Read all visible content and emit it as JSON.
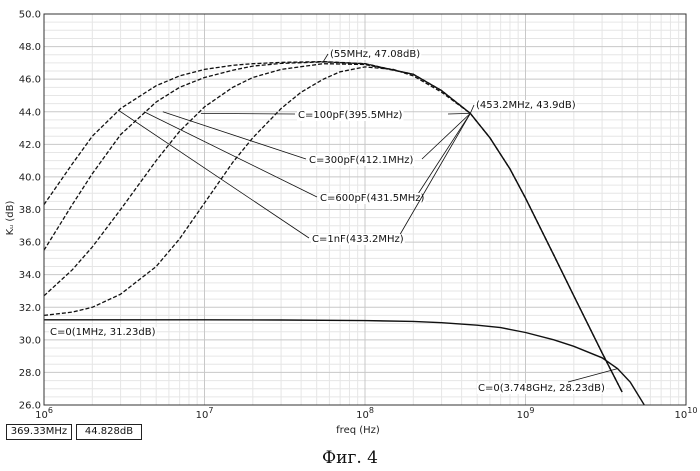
{
  "figure_caption": "Фиг. 4",
  "readouts": {
    "frequency": "369.33MHz",
    "gain": "44.828dB"
  },
  "colors": {
    "curve": "#111111",
    "grid_major": "#c8c8c8",
    "grid_minor": "#e6e6e6",
    "frame": "#333333"
  },
  "chart_data": {
    "type": "line",
    "xlabel": "freq (Hz)",
    "ylabel": "Kᵤ (dB)",
    "x_scale": "log",
    "xlim": [
      1000000,
      10000000000
    ],
    "ylim": [
      26,
      50
    ],
    "x_ticks": [
      {
        "value": 1000000,
        "base": "10",
        "exp": "6"
      },
      {
        "value": 10000000,
        "base": "10",
        "exp": "7"
      },
      {
        "value": 100000000,
        "base": "10",
        "exp": "8"
      },
      {
        "value": 1000000000,
        "base": "10",
        "exp": "9"
      },
      {
        "value": 10000000000,
        "base": "10",
        "exp": "10"
      }
    ],
    "y_ticks": [
      {
        "value": 26,
        "label": "26.0"
      },
      {
        "value": 28,
        "label": "28.0"
      },
      {
        "value": 30,
        "label": "30.0"
      },
      {
        "value": 32,
        "label": "32.0"
      },
      {
        "value": 34,
        "label": "34.0"
      },
      {
        "value": 36,
        "label": "36.0"
      },
      {
        "value": 38,
        "label": "38.0"
      },
      {
        "value": 40,
        "label": "40.0"
      },
      {
        "value": 42,
        "label": "42.0"
      },
      {
        "value": 44,
        "label": "44.0"
      },
      {
        "value": 46,
        "label": "46.0"
      },
      {
        "value": 48,
        "label": "48.0"
      },
      {
        "value": 50,
        "label": "50.0"
      }
    ],
    "grid": true,
    "series": [
      {
        "dashed": false,
        "x": [
          1000000,
          3000000,
          10000000,
          30000000,
          100000000,
          200000000,
          300000000,
          500000000,
          700000000,
          1000000000,
          1500000000,
          2000000000,
          3000000000,
          3748000000,
          4500000000,
          5500000000
        ],
        "y": [
          31.23,
          31.23,
          31.23,
          31.22,
          31.18,
          31.13,
          31.05,
          30.9,
          30.75,
          30.45,
          30.0,
          29.6,
          28.9,
          28.23,
          27.4,
          26.0
        ]
      },
      {
        "dashed": true,
        "x": [
          1000000,
          1500000,
          2000000,
          3000000,
          5000000,
          7000000,
          10000000,
          15000000,
          20000000,
          30000000,
          55000000,
          100000000,
          200000000,
          300000000,
          453200000,
          600000000,
          800000000,
          1000000000,
          1500000000,
          2000000000,
          3000000000,
          4000000000
        ],
        "y": [
          38.3,
          40.8,
          42.5,
          44.2,
          45.6,
          46.2,
          46.6,
          46.85,
          46.95,
          47.03,
          47.08,
          46.95,
          46.3,
          45.3,
          43.9,
          42.4,
          40.5,
          38.7,
          35.2,
          32.7,
          29.2,
          26.8
        ]
      },
      {
        "dashed": true,
        "x": [
          1000000,
          1500000,
          2000000,
          3000000,
          5000000,
          7000000,
          10000000,
          15000000,
          20000000,
          30000000,
          55000000,
          100000000,
          200000000,
          300000000,
          453200000,
          600000000,
          800000000,
          1000000000,
          1500000000,
          2000000000,
          3000000000,
          4000000000
        ],
        "y": [
          35.5,
          38.3,
          40.2,
          42.6,
          44.6,
          45.5,
          46.1,
          46.55,
          46.8,
          46.97,
          47.06,
          46.95,
          46.3,
          45.3,
          43.9,
          42.4,
          40.5,
          38.7,
          35.2,
          32.7,
          29.2,
          26.8
        ]
      },
      {
        "dashed": true,
        "x": [
          1000000,
          1500000,
          2000000,
          3000000,
          5000000,
          7000000,
          10000000,
          15000000,
          20000000,
          30000000,
          55000000,
          100000000,
          200000000,
          300000000,
          453200000,
          600000000,
          800000000,
          1000000000,
          1500000000,
          2000000000,
          3000000000,
          4000000000
        ],
        "y": [
          32.7,
          34.3,
          35.7,
          38.0,
          41.0,
          42.8,
          44.3,
          45.5,
          46.1,
          46.6,
          46.95,
          46.9,
          46.3,
          45.3,
          43.9,
          42.4,
          40.5,
          38.7,
          35.2,
          32.7,
          29.2,
          26.8
        ]
      },
      {
        "dashed": true,
        "x": [
          1000000,
          1500000,
          2000000,
          3000000,
          5000000,
          7000000,
          10000000,
          15000000,
          20000000,
          30000000,
          40000000,
          55000000,
          70000000,
          100000000,
          150000000,
          200000000,
          300000000,
          453200000,
          600000000,
          800000000,
          1000000000,
          1500000000,
          2000000000,
          3000000000,
          4000000000
        ],
        "y": [
          31.5,
          31.7,
          32.0,
          32.8,
          34.5,
          36.2,
          38.4,
          40.9,
          42.4,
          44.2,
          45.2,
          46.0,
          46.45,
          46.75,
          46.6,
          46.2,
          45.2,
          43.9,
          42.4,
          40.5,
          38.7,
          35.2,
          32.7,
          29.2,
          26.8
        ]
      }
    ],
    "annotations": [
      {
        "text": "(55MHz, 47.08dB)",
        "points": [
          [
            55000000,
            47.08
          ]
        ]
      },
      {
        "text": "(453.2MHz, 43.9dB)",
        "points": [
          [
            453200000,
            43.9
          ]
        ]
      },
      {
        "text": "C=100pF(395.5MHz)",
        "points": [
          [
            9500000,
            43.9
          ],
          [
            453200000,
            43.9
          ]
        ]
      },
      {
        "text": "C=300pF(412.1MHz)",
        "points": [
          [
            5500000,
            44.0
          ],
          [
            453200000,
            43.9
          ]
        ]
      },
      {
        "text": "C=600pF(431.5MHz)",
        "points": [
          [
            4200000,
            44.0
          ],
          [
            453200000,
            43.9
          ]
        ]
      },
      {
        "text": "C=1nF(433.2MHz)",
        "points": [
          [
            2900000,
            44.1
          ],
          [
            453200000,
            43.9
          ]
        ]
      },
      {
        "text": "C=0(1MHz, 31.23dB)",
        "points": [
          [
            1000000,
            31.23
          ]
        ]
      },
      {
        "text": "C=0(3.748GHz, 28.23dB)",
        "points": [
          [
            3748000000,
            28.23
          ]
        ]
      }
    ]
  }
}
